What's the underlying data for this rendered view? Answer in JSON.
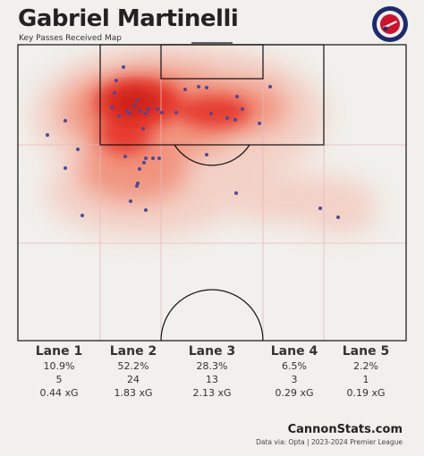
{
  "header": {
    "title": "Gabriel Martinelli",
    "subtitle": "Key Passes Received Map"
  },
  "logo": {
    "top_text": "CANNON",
    "bottom_text": "STATS",
    "ring_color": "#1e2a6e",
    "accent_color": "#d0112b"
  },
  "lanes": [
    {
      "name": "Lane 1",
      "pct": "10.9%",
      "count": "5",
      "xg": "0.44 xG"
    },
    {
      "name": "Lane 2",
      "pct": "52.2%",
      "count": "24",
      "xg": "1.83 xG"
    },
    {
      "name": "Lane 3",
      "pct": "28.3%",
      "count": "13",
      "xg": "2.13 xG"
    },
    {
      "name": "Lane 4",
      "pct": "6.5%",
      "count": "3",
      "xg": "0.29 xG"
    },
    {
      "name": "Lane 5",
      "pct": "2.2%",
      "count": "1",
      "xg": "0.19 xG"
    }
  ],
  "footer": {
    "site": "CannonStats.com",
    "source": "Data via: Opta | 2023-2024 Premier League"
  },
  "colors": {
    "background": "#f1f0ec",
    "heat": "#e8241a",
    "dots": "#4b4a9a",
    "lines": "#111111",
    "lane_lines": "#e7b8bc"
  }
}
